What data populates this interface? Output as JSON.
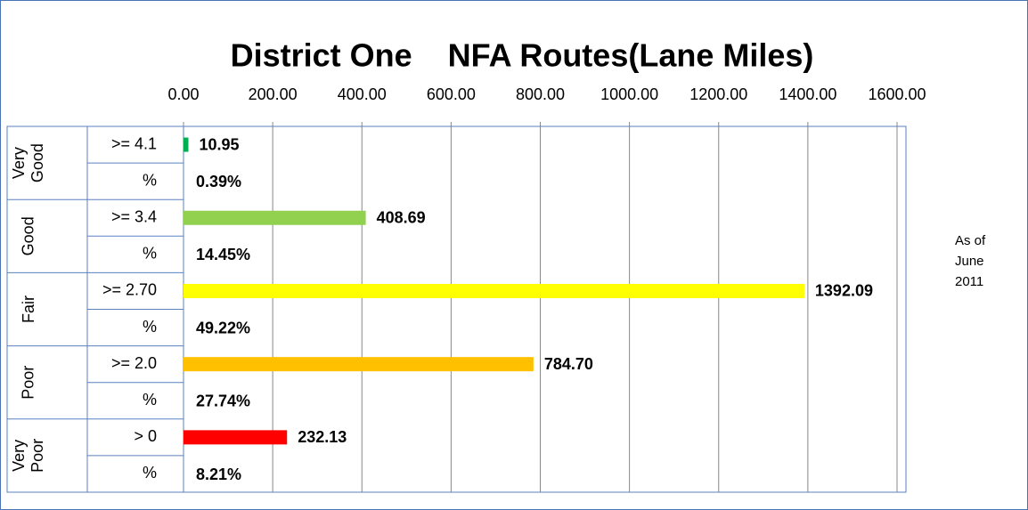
{
  "chart_data": {
    "type": "bar",
    "orientation": "horizontal",
    "title": "District One    NFA Routes(Lane Miles)",
    "group_labels": [
      [
        "Very",
        "Good"
      ],
      [
        "Good"
      ],
      [
        "Fair"
      ],
      [
        "Poor"
      ],
      [
        "Very",
        "Poor"
      ]
    ],
    "categories": [
      ">= 4.1",
      ">= 3.4",
      ">= 2.70",
      ">= 2.0",
      "> 0"
    ],
    "percent_label": "%",
    "values": [
      10.95,
      408.69,
      1392.09,
      784.7,
      232.13
    ],
    "value_labels": [
      "10.95",
      "408.69",
      "1392.09",
      "784.70",
      "232.13"
    ],
    "percentages": [
      0.39,
      14.45,
      49.22,
      27.74,
      8.21
    ],
    "percentage_labels": [
      "0.39%",
      "14.45%",
      "49.22%",
      "27.74%",
      "8.21%"
    ],
    "colors": [
      "#00b050",
      "#92d050",
      "#ffff00",
      "#ffc000",
      "#ff0000"
    ],
    "xlim": [
      0,
      1600
    ],
    "xticks": [
      {
        "value": 0,
        "label": "0.00"
      },
      {
        "value": 200,
        "label": "200.00"
      },
      {
        "value": 400,
        "label": "400.00"
      },
      {
        "value": 600,
        "label": "600.00"
      },
      {
        "value": 800,
        "label": "800.00"
      },
      {
        "value": 1000,
        "label": "1000.00"
      },
      {
        "value": 1200,
        "label": "1200.00"
      },
      {
        "value": 1400,
        "label": "1400.00"
      },
      {
        "value": 1600,
        "label": "1600.00"
      }
    ],
    "grid": true,
    "annotation": [
      "As of",
      "June",
      "2011"
    ]
  }
}
